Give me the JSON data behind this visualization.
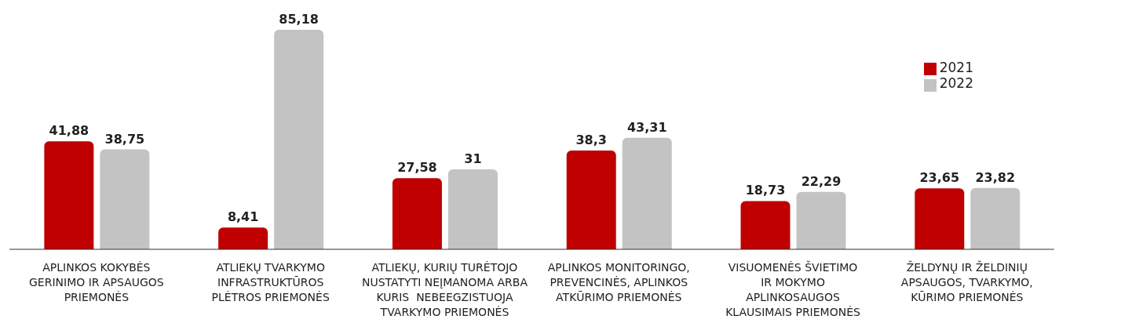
{
  "chart_data": {
    "type": "bar",
    "categories": [
      "APLINKOS KOKYBĖS\nGERINIMO IR APSAUGOS\nPRIEMONĖS",
      "ATLIEKŲ TVARKYMO\nINFRASTRUKTŪROS\nPLĖTROS PRIEMONĖS",
      "ATLIEKŲ, KURIŲ TURĖTOJO\nNUSTATYTI NEĮMANOMA ARBA\nKURIS  NEBEEGZISTUOJA\nTVARKYMO PRIEMONĖS",
      "APLINKOS MONITORINGO,\nPREVENCINĖS, APLINKOS\nATKŪRIMO PRIEMONĖS",
      "VISUOMENĖS ŠVIETIMO\nIR MOKYMO\nAPLINKOSAUGOS\nKLAUSIMAIS PRIEMONĖS",
      "ŽELDYNŲ IR ŽELDINIŲ\nAPSAUGOS, TVARKYMO,\nKŪRIMO PRIEMONĖS"
    ],
    "series": [
      {
        "name": "2021",
        "color": "#c00000",
        "values": [
          41.88,
          8.41,
          27.58,
          38.3,
          18.73,
          23.65
        ],
        "value_labels": [
          "41,88",
          "8,41",
          "27,58",
          "38,3",
          "18,73",
          "23,65"
        ]
      },
      {
        "name": "2022",
        "color": "#c3c3c3",
        "values": [
          38.75,
          85.18,
          31,
          43.31,
          22.29,
          23.82
        ],
        "value_labels": [
          "38,75",
          "85,18",
          "31",
          "43,31",
          "22,29",
          "23,82"
        ]
      }
    ],
    "legend": "top right",
    "grid": false
  }
}
